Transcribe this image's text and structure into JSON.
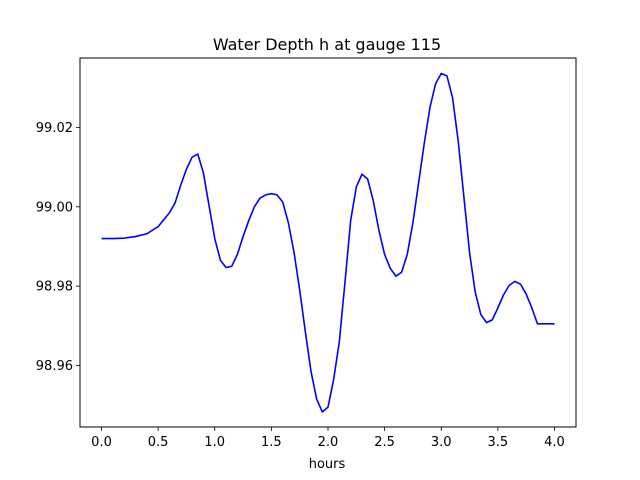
{
  "chart_data": {
    "type": "line",
    "title": "Water Depth h at gauge 115",
    "xlabel": "hours",
    "ylabel": "",
    "xlim": [
      -0.19,
      4.19
    ],
    "ylim": [
      98.9445,
      99.0375
    ],
    "xticks": [
      0.0,
      0.5,
      1.0,
      1.5,
      2.0,
      2.5,
      3.0,
      3.5,
      4.0
    ],
    "xtick_labels": [
      "0.0",
      "0.5",
      "1.0",
      "1.5",
      "2.0",
      "2.5",
      "3.0",
      "3.5",
      "4.0"
    ],
    "yticks": [
      98.96,
      98.98,
      99.0,
      99.02
    ],
    "ytick_labels": [
      "98.96",
      "98.98",
      "99.00",
      "99.02"
    ],
    "grid": false,
    "line_color": "#0000ff",
    "series": [
      {
        "x": [
          0.0,
          0.1,
          0.2,
          0.3,
          0.4,
          0.5,
          0.6,
          0.65,
          0.7,
          0.75,
          0.8,
          0.85,
          0.9,
          0.95,
          1.0,
          1.05,
          1.1,
          1.15,
          1.2,
          1.25,
          1.3,
          1.35,
          1.4,
          1.45,
          1.5,
          1.55,
          1.6,
          1.65,
          1.7,
          1.75,
          1.8,
          1.85,
          1.9,
          1.95,
          2.0,
          2.05,
          2.1,
          2.15,
          2.2,
          2.25,
          2.3,
          2.35,
          2.4,
          2.45,
          2.5,
          2.55,
          2.6,
          2.65,
          2.7,
          2.75,
          2.8,
          2.85,
          2.9,
          2.95,
          3.0,
          3.05,
          3.1,
          3.15,
          3.2,
          3.25,
          3.3,
          3.35,
          3.4,
          3.45,
          3.5,
          3.55,
          3.6,
          3.65,
          3.7,
          3.75,
          3.8,
          3.85,
          3.9,
          3.95,
          4.0
        ],
        "y": [
          98.992,
          98.992,
          98.9921,
          98.9925,
          98.9932,
          98.995,
          98.9985,
          99.001,
          99.0055,
          99.0095,
          99.0125,
          99.0133,
          99.0085,
          99.0002,
          98.992,
          98.9865,
          98.9847,
          98.985,
          98.988,
          98.9925,
          98.9965,
          99.0,
          99.0022,
          99.003,
          99.0033,
          99.003,
          99.0012,
          98.996,
          98.9885,
          98.979,
          98.9685,
          98.9585,
          98.9515,
          98.9483,
          98.9495,
          98.9565,
          98.966,
          98.981,
          98.9965,
          99.005,
          99.0082,
          99.007,
          99.0015,
          98.994,
          98.988,
          98.9845,
          98.9825,
          98.9835,
          98.988,
          98.996,
          99.006,
          99.016,
          99.025,
          99.031,
          99.0336,
          99.033,
          99.0275,
          99.0165,
          99.0025,
          98.9885,
          98.9785,
          98.9728,
          98.9708,
          98.9715,
          98.9745,
          98.9778,
          98.9802,
          98.9812,
          98.9805,
          98.978,
          98.9745,
          98.9705,
          98.9705,
          98.9705,
          98.9705
        ]
      }
    ]
  }
}
